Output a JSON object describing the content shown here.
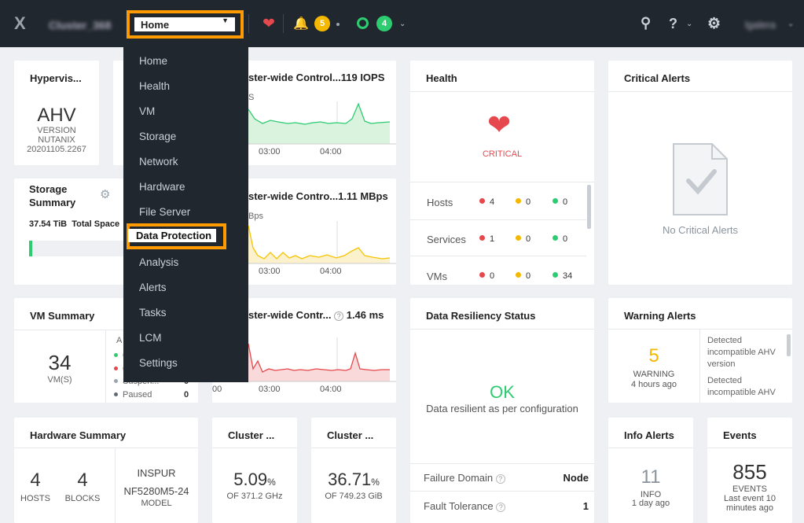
{
  "topbar": {
    "logo": "X",
    "cluster_name": "Cluster_368",
    "home_select": "Home",
    "alerts_count": "5",
    "tasks_count": "4",
    "search_icon": "search-icon",
    "help_icon": "help-icon",
    "gear_icon": "gear-icon",
    "user": "lgalera",
    "colors": {
      "bar": "#21272e",
      "highlight": "#ff9a00",
      "critical": "#e5484d",
      "warning": "#f5b800",
      "ok": "#2ecc71"
    }
  },
  "menu": {
    "items": [
      "Home",
      "Health",
      "VM",
      "Storage",
      "Network",
      "Hardware",
      "File Server",
      "Data Protection",
      "Analysis",
      "Alerts",
      "Tasks",
      "LCM",
      "Settings"
    ],
    "selected": "Data Protection"
  },
  "hypervisor": {
    "title": "Hypervis...",
    "name": "AHV",
    "version_label": "VERSION",
    "vendor": "NUTANIX",
    "version": "20201105.2267"
  },
  "storage_summary": {
    "title_l1": "Storage",
    "title_l2": "Summary",
    "total": "37.54 TiB",
    "total_label": "Total Space"
  },
  "iops": {
    "title": "ster-wide Control...",
    "value": "119 IOPS",
    "axis_unit": "S",
    "x1": "03:00",
    "x2": "04:00"
  },
  "bandwidth": {
    "title": "ster-wide Contro...",
    "value": "1.11 MBps",
    "axis_unit": "Bps",
    "x1": "03:00",
    "x2": "04:00"
  },
  "latency": {
    "title": "ster-wide Contr...",
    "value": "1.46 ms",
    "x0": "00",
    "x1": "03:00",
    "x2": "04:00"
  },
  "health": {
    "title": "Health",
    "status": "CRITICAL",
    "rows": [
      {
        "label": "Hosts",
        "critical": "4",
        "warning": "0",
        "ok": "0"
      },
      {
        "label": "Services",
        "critical": "1",
        "warning": "0",
        "ok": "0"
      },
      {
        "label": "VMs",
        "critical": "0",
        "warning": "0",
        "ok": "34"
      }
    ]
  },
  "critical_alerts": {
    "title": "Critical Alerts",
    "empty": "No Critical Alerts"
  },
  "vm_summary": {
    "title": "VM Summary",
    "count": "34",
    "count_label": "VM(S)",
    "header_fragment": "A",
    "states": [
      {
        "label": "O",
        "value": ""
      },
      {
        "label": "O",
        "value": ""
      },
      {
        "label": "Suspen...",
        "value": "0"
      },
      {
        "label": "Paused",
        "value": "0"
      }
    ]
  },
  "data_resiliency": {
    "title": "Data Resiliency Status",
    "status": "OK",
    "description": "Data resilient as per configuration",
    "failure_domain_label": "Failure Domain",
    "failure_domain_value": "Node",
    "fault_tolerance_label": "Fault Tolerance",
    "fault_tolerance_value": "1"
  },
  "warning_alerts": {
    "title": "Warning Alerts",
    "count": "5",
    "label": "WARNING",
    "time": "4 hours ago",
    "items": [
      "Detected incompatible AHV version",
      "Detected incompatible AHV"
    ]
  },
  "hardware_summary": {
    "title": "Hardware Summary",
    "hosts": "4",
    "hosts_label": "HOSTS",
    "blocks": "4",
    "blocks_label": "BLOCKS",
    "vendor": "INSPUR",
    "model": "NF5280M5-24",
    "model_label": "MODEL"
  },
  "cluster_cpu": {
    "title": "Cluster ...",
    "value": "5.09",
    "unit": "%",
    "of": "OF 371.2 GHz"
  },
  "cluster_mem": {
    "title": "Cluster ...",
    "value": "36.71",
    "unit": "%",
    "of": "OF 749.23 GiB"
  },
  "info_alerts": {
    "title": "Info Alerts",
    "count": "11",
    "label": "INFO",
    "time": "1 day ago"
  },
  "events": {
    "title": "Events",
    "count": "855",
    "label": "EVENTS",
    "time": "Last event 10 minutes ago"
  }
}
